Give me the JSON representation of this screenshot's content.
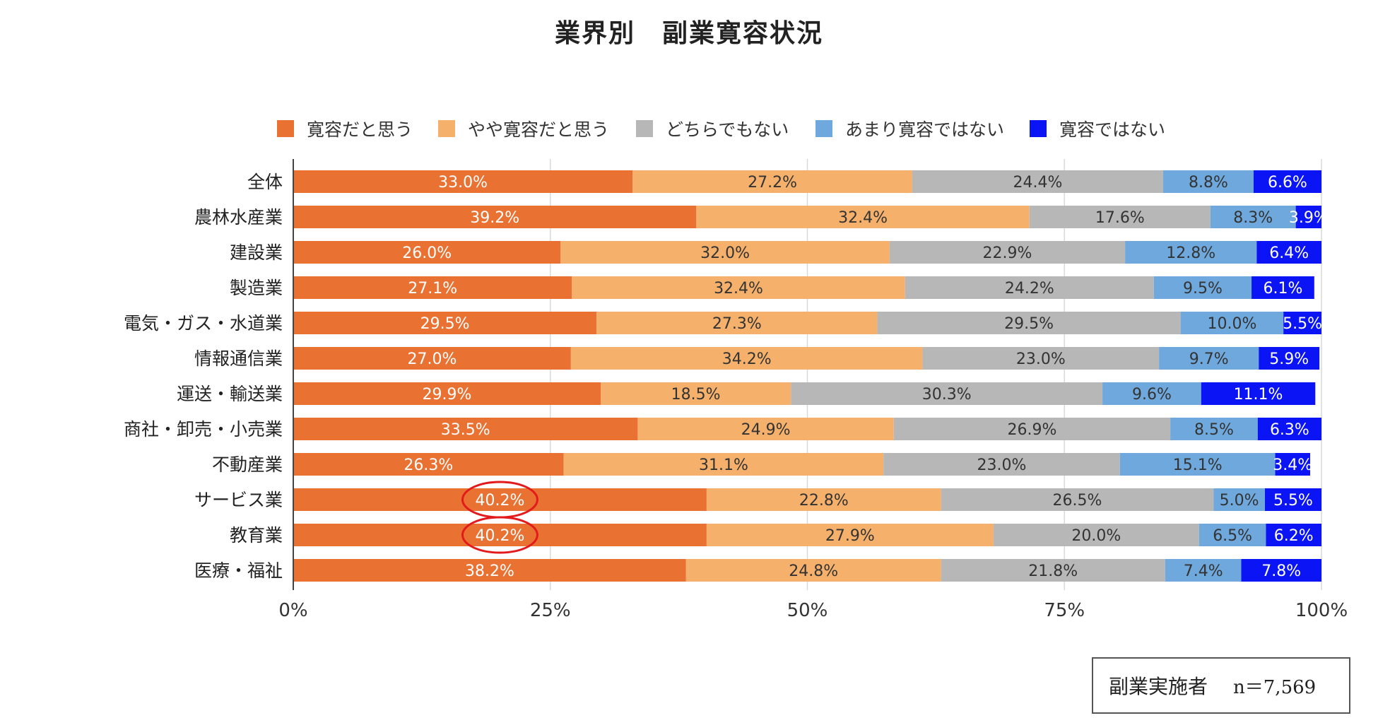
{
  "title": "業界別　副業寛容状況",
  "note": {
    "label": "副業実施者",
    "n": "n＝7,569"
  },
  "chart_data": {
    "type": "bar",
    "orientation": "horizontal",
    "stacked": "percent",
    "legend_position": "top",
    "categories": [
      "全体",
      "農林水産業",
      "建設業",
      "製造業",
      "電気・ガス・水道業",
      "情報通信業",
      "運送・輸送業",
      "商社・卸売・小売業",
      "不動産業",
      "サービス業",
      "教育業",
      "医療・福祉"
    ],
    "series": [
      {
        "name": "寛容だと思う",
        "color": "#E97132",
        "values": [
          33.0,
          39.2,
          26.0,
          27.1,
          29.5,
          27.0,
          29.9,
          33.5,
          26.3,
          40.2,
          40.2,
          38.2
        ],
        "labels": [
          "33.0%",
          "39.2%",
          "26.0%",
          "27.1%",
          "29.5%",
          "27.0%",
          "29.9%",
          "33.5%",
          "26.3%",
          "40.2%",
          "40.2%",
          "38.2%"
        ]
      },
      {
        "name": "やや寛容だと思う",
        "color": "#F5B06B",
        "values": [
          27.2,
          32.4,
          32.0,
          32.4,
          27.3,
          34.2,
          18.5,
          24.9,
          31.1,
          22.8,
          27.9,
          24.8
        ],
        "labels": [
          "27.2%",
          "32.4%",
          "32.0%",
          "32.4%",
          "27.3%",
          "34.2%",
          "18.5%",
          "24.9%",
          "31.1%",
          "22.8%",
          "27.9%",
          "24.8%"
        ]
      },
      {
        "name": "どちらでもない",
        "color": "#B7B7B7",
        "values": [
          24.4,
          17.6,
          22.9,
          24.2,
          29.5,
          23.0,
          30.3,
          26.9,
          23.0,
          26.5,
          20.0,
          21.8
        ],
        "labels": [
          "24.4%",
          "17.6%",
          "22.9%",
          "24.2%",
          "29.5%",
          "23.0%",
          "30.3%",
          "26.9%",
          "23.0%",
          "26.5%",
          "20.0%",
          "21.8%"
        ]
      },
      {
        "name": "あまり寛容ではない",
        "color": "#6FA8DC",
        "values": [
          8.8,
          8.3,
          12.8,
          9.5,
          10.0,
          9.7,
          9.6,
          8.5,
          15.1,
          5.0,
          6.5,
          7.4
        ],
        "labels": [
          "8.8%",
          "8.3%",
          "12.8%",
          "9.5%",
          "10.0%",
          "9.7%",
          "9.6%",
          "8.5%",
          "15.1%",
          "5.0%",
          "6.5%",
          "7.4%"
        ]
      },
      {
        "name": "寛容ではない",
        "color": "#0A14F5",
        "values": [
          6.6,
          3.9,
          6.4,
          6.1,
          5.5,
          5.9,
          11.1,
          6.3,
          3.4,
          5.5,
          6.2,
          7.8
        ],
        "labels": [
          "6.6%",
          "3.9%",
          "6.4%",
          "6.1%",
          "5.5%",
          "5.9%",
          "11.1%",
          "6.3%",
          "3.4%",
          "5.5%",
          "6.2%",
          "7.8%"
        ]
      }
    ],
    "xlim": [
      0,
      100
    ],
    "xticks": [
      0,
      25,
      50,
      75,
      100
    ],
    "xtick_labels": [
      "0%",
      "25%",
      "50%",
      "75%",
      "100%"
    ],
    "grid": true,
    "annotations": [
      {
        "type": "circle",
        "category": "サービス業",
        "series": "寛容だと思う",
        "color": "#E31A1C"
      },
      {
        "type": "circle",
        "category": "教育業",
        "series": "寛容だと思う",
        "color": "#E31A1C"
      }
    ]
  }
}
